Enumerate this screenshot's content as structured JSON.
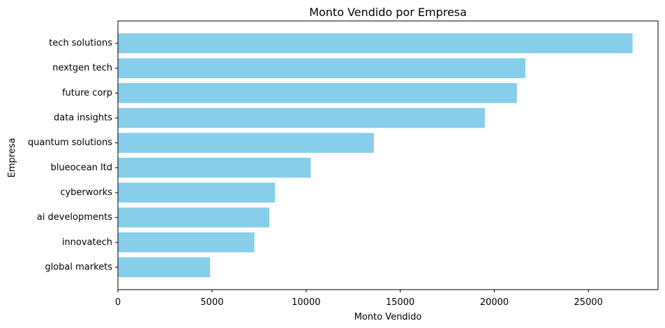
{
  "chart_data": {
    "type": "bar",
    "orientation": "horizontal",
    "title": "Monto Vendido por Empresa",
    "xlabel": "Monto Vendido",
    "ylabel": "Empresa",
    "categories": [
      "tech solutions",
      "nextgen tech",
      "future corp",
      "data insights",
      "quantum solutions",
      "blueocean ltd",
      "cyberworks",
      "ai developments",
      "innovatech",
      "global markets"
    ],
    "values": [
      27350,
      21650,
      21200,
      19500,
      13600,
      10250,
      8350,
      8050,
      7250,
      4900
    ],
    "xticks": [
      0,
      5000,
      10000,
      15000,
      20000,
      25000
    ],
    "xlim": [
      0,
      28700
    ],
    "bar_color": "#87ceeb",
    "grid": false,
    "legend": "none"
  }
}
